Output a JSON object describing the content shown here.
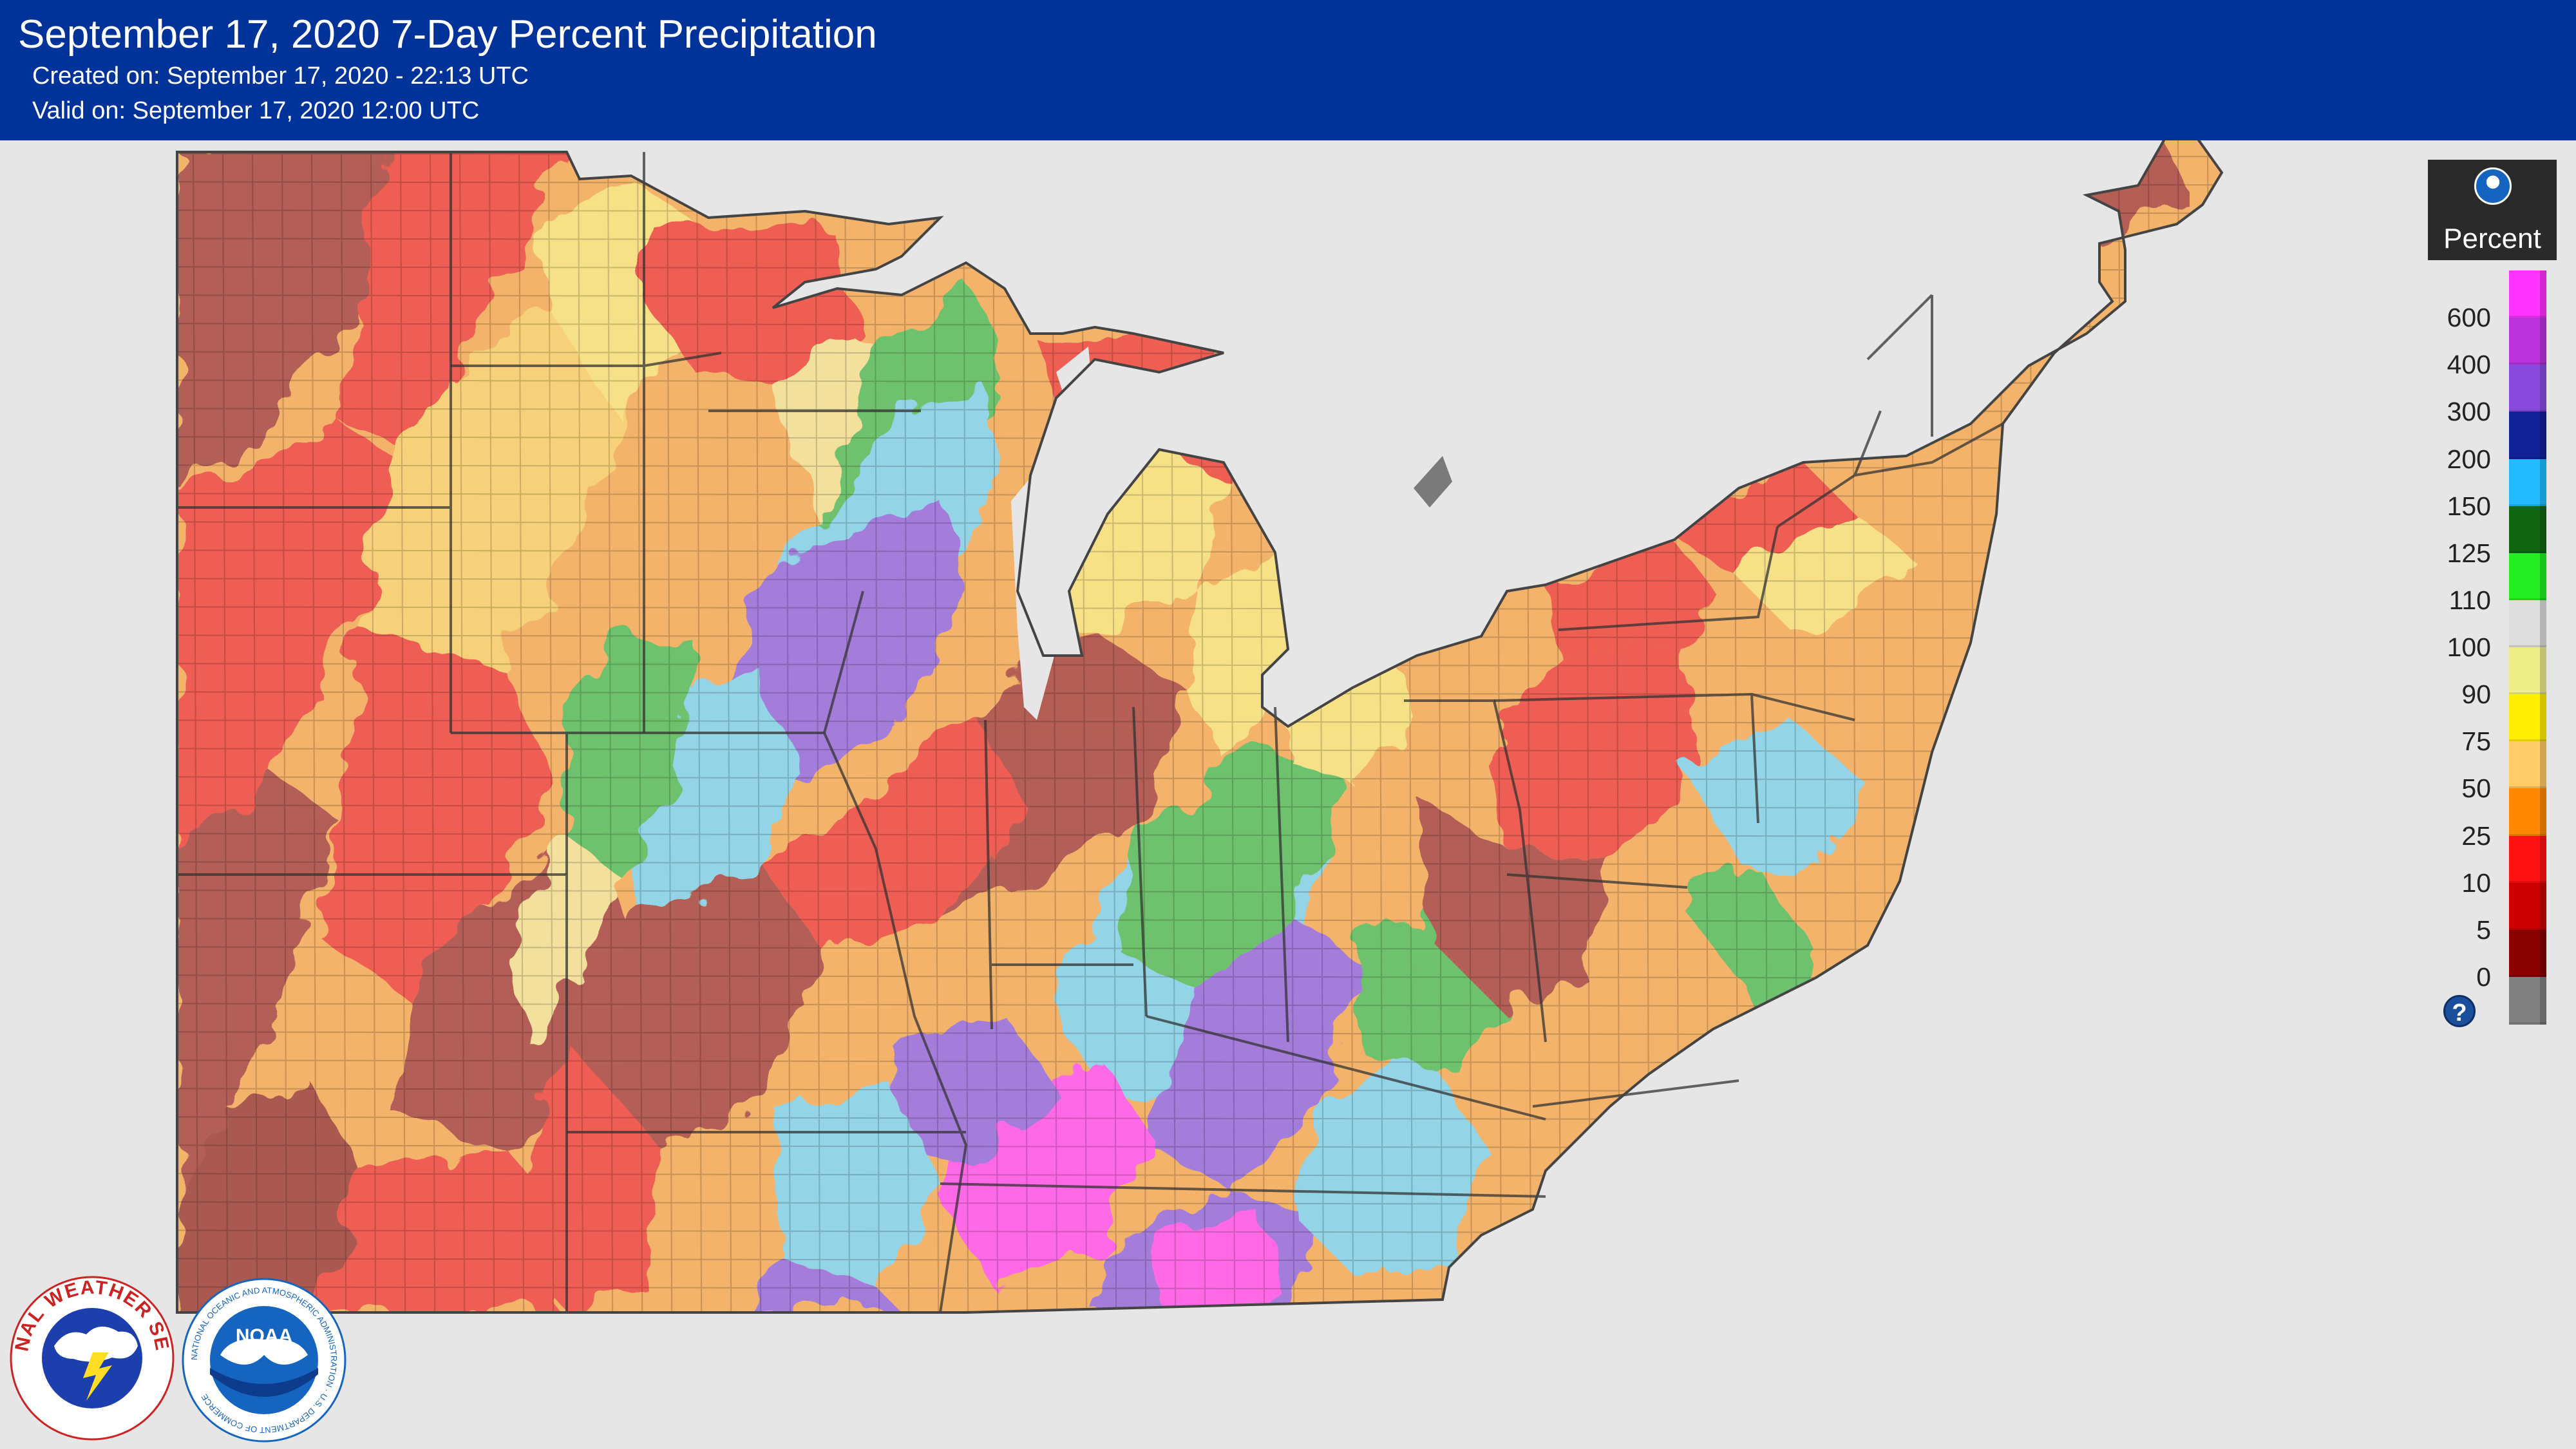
{
  "header": {
    "title": "September 17, 2020 7-Day Percent Precipitation",
    "created": "Created on: September 17, 2020 - 22:13 UTC",
    "valid": "Valid on: September 17, 2020 12:00 UTC"
  },
  "legend": {
    "unit": "Percent",
    "icon": "noaa-icon",
    "help_icon": "question-icon",
    "help_symbol": "?",
    "colors": [
      "#ff33ff",
      "#bb33dd",
      "#8a4ae0",
      "#112299",
      "#22bbff",
      "#116611",
      "#22ee22",
      "#dddddd",
      "#eeee88",
      "#ffee00",
      "#ffcc66",
      "#ff8800",
      "#ff1111",
      "#cc0000",
      "#880000",
      "#808080"
    ],
    "labels": [
      "600",
      "400",
      "300",
      "200",
      "150",
      "125",
      "110",
      "100",
      "90",
      "75",
      "50",
      "25",
      "10",
      "5",
      "0"
    ]
  },
  "logos": {
    "nws": "NATIONAL WEATHER SERVICE",
    "noaa": "NOAA",
    "noaa_ring": "NATIONAL OCEANIC AND ATMOSPHERIC ADMINISTRATION · U.S. DEPARTMENT OF COMMERCE"
  }
}
